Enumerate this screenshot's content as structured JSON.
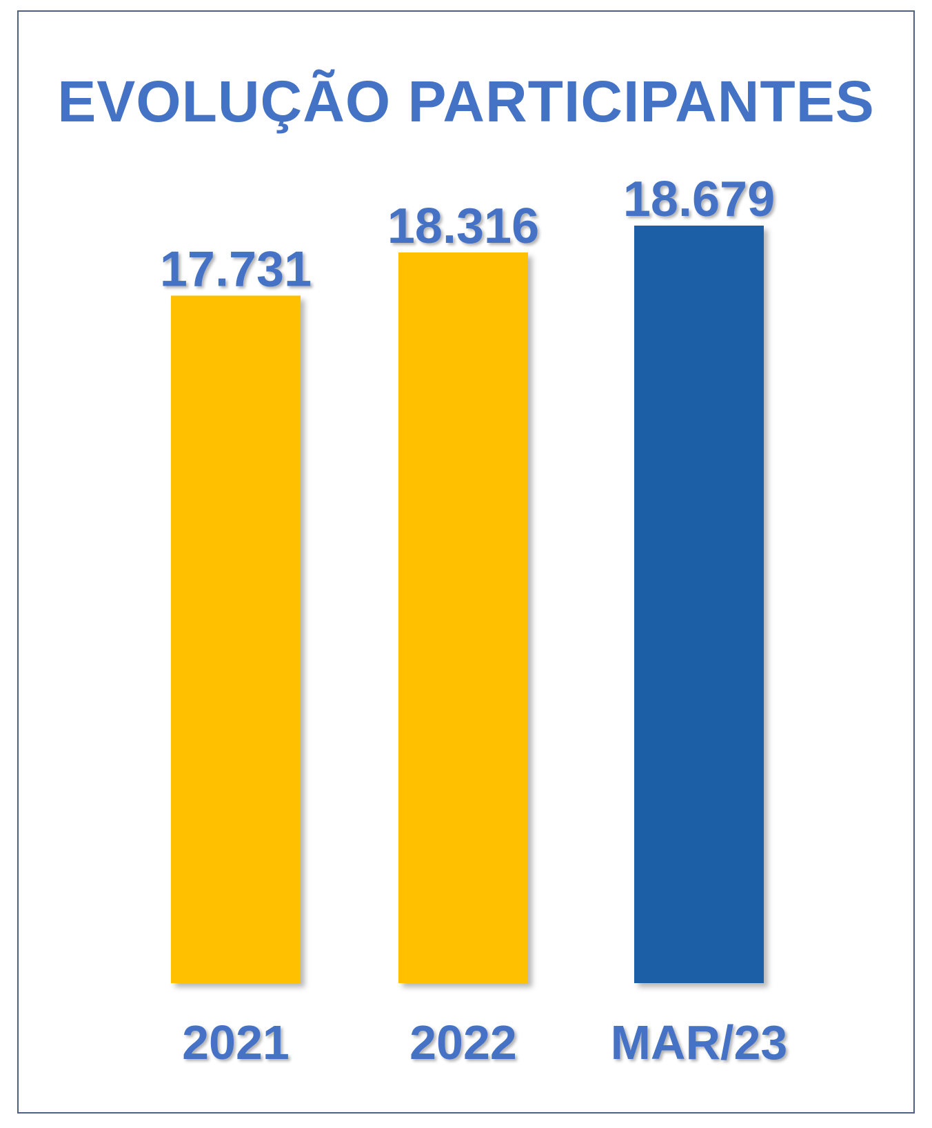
{
  "chart_data": {
    "type": "bar",
    "title": "EVOLUÇÃO PARTICIPANTES",
    "categories": [
      "2021",
      "2022",
      "MAR/23"
    ],
    "values": [
      17731,
      18316,
      18679
    ],
    "value_labels": [
      "17.731",
      "18.316",
      "18.679"
    ],
    "xlabel": "",
    "ylabel": "",
    "grid": false,
    "legend": "none",
    "colors": [
      "#FFC000",
      "#FFC000",
      "#1F5FA6"
    ],
    "label_color": "#4472C4"
  }
}
